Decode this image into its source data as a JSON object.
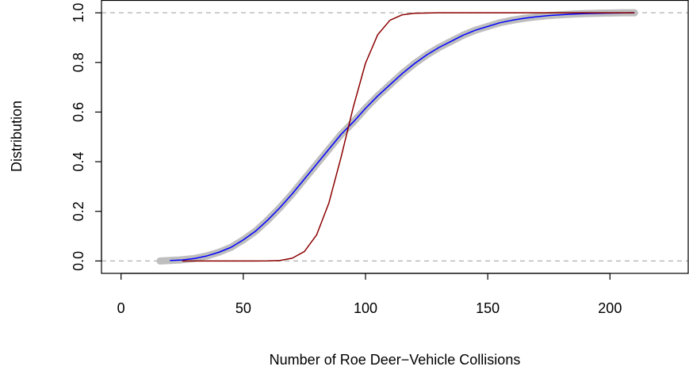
{
  "chart_data": {
    "type": "line",
    "xlabel": "Number of Roe Deer−Vehicle Collisions",
    "ylabel": "Distribution",
    "xlim": [
      -8,
      232
    ],
    "ylim": [
      -0.05,
      1.05
    ],
    "xticks": [
      0,
      50,
      100,
      150,
      200
    ],
    "yticks": [
      {
        "value": 0,
        "label": "0.0"
      },
      0.2,
      0.4,
      0.6,
      0.8,
      {
        "value": 1,
        "label": "1.0"
      }
    ],
    "hlines": [
      0,
      1
    ],
    "hline_color": "#b0b0b0",
    "series": [
      {
        "color": "#bebebe",
        "marker": true,
        "x": [
          16,
          20,
          22,
          24,
          30,
          35,
          40,
          45,
          50,
          55,
          60,
          65,
          70,
          75,
          80,
          85,
          90,
          95,
          100,
          105,
          110,
          115,
          120,
          125,
          130,
          135,
          140,
          145,
          150,
          155,
          160,
          165,
          170,
          175,
          180,
          185,
          190,
          195,
          198,
          200,
          205,
          208,
          210
        ],
        "values": [
          0.0,
          0.002,
          0.003,
          0.004,
          0.01,
          0.02,
          0.035,
          0.055,
          0.085,
          0.12,
          0.165,
          0.215,
          0.27,
          0.33,
          0.39,
          0.45,
          0.51,
          0.56,
          0.615,
          0.665,
          0.71,
          0.755,
          0.795,
          0.83,
          0.86,
          0.885,
          0.91,
          0.93,
          0.945,
          0.96,
          0.97,
          0.978,
          0.984,
          0.989,
          0.992,
          0.995,
          0.997,
          0.998,
          0.999,
          0.999,
          1.0,
          1.0,
          1.0
        ]
      },
      {
        "color": "#0000ff",
        "x": [
          20,
          25,
          30,
          35,
          40,
          45,
          50,
          55,
          60,
          65,
          70,
          75,
          80,
          85,
          90,
          95,
          100,
          105,
          110,
          115,
          120,
          125,
          130,
          135,
          140,
          145,
          150,
          155,
          160,
          165,
          170,
          175,
          180,
          185,
          190,
          200,
          210
        ],
        "values": [
          0.002,
          0.004,
          0.01,
          0.02,
          0.035,
          0.055,
          0.085,
          0.12,
          0.165,
          0.215,
          0.27,
          0.33,
          0.39,
          0.45,
          0.51,
          0.56,
          0.615,
          0.665,
          0.71,
          0.755,
          0.795,
          0.83,
          0.86,
          0.885,
          0.91,
          0.93,
          0.945,
          0.96,
          0.97,
          0.978,
          0.984,
          0.989,
          0.992,
          0.995,
          0.997,
          0.999,
          1.0
        ]
      },
      {
        "color": "#8b0000",
        "x": [
          25,
          40,
          55,
          60,
          65,
          70,
          75,
          80,
          85,
          90,
          95,
          100,
          105,
          110,
          115,
          120,
          130,
          150,
          210
        ],
        "values": [
          0.0,
          0.0,
          0.0,
          0.0004,
          0.002,
          0.011,
          0.038,
          0.105,
          0.233,
          0.418,
          0.62,
          0.797,
          0.912,
          0.97,
          0.992,
          0.998,
          1.0,
          1.0,
          1.0
        ]
      }
    ]
  }
}
